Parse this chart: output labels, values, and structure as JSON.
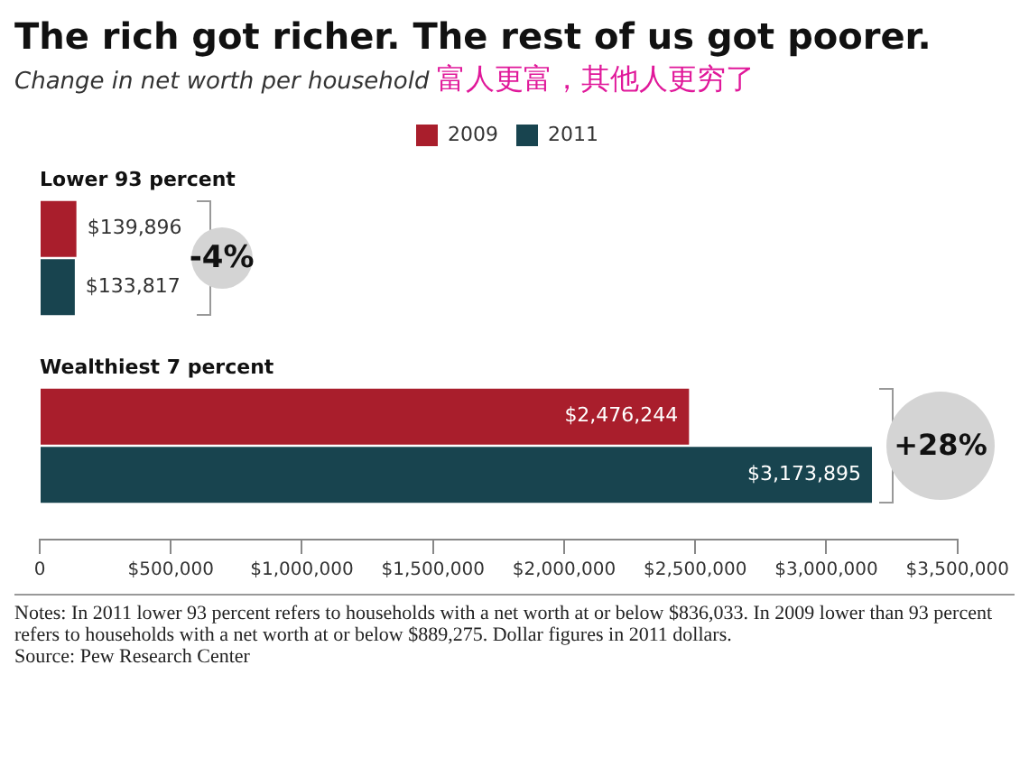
{
  "chart_data": {
    "type": "bar",
    "orientation": "horizontal",
    "title": "The rich got richer. The rest of us got poorer.",
    "subtitle": "Change in net worth per household",
    "categories": [
      "Lower 93 percent",
      "Wealthiest 7 percent"
    ],
    "series": [
      {
        "name": "2009",
        "color": "#a91e2c",
        "values": [
          139896,
          2476244
        ],
        "value_labels": [
          "$139,896",
          "$2,476,244"
        ]
      },
      {
        "name": "2011",
        "color": "#18444f",
        "values": [
          133817,
          3173895
        ],
        "value_labels": [
          "$133,817",
          "$3,173,895"
        ]
      }
    ],
    "xlim": [
      0,
      3500000
    ],
    "xticks": [
      0,
      {
        "value": 500000,
        "label": "$500,000"
      },
      {
        "value": 1000000,
        "label": "$1,000,000"
      },
      {
        "value": 1500000,
        "label": "$1,500,000"
      },
      {
        "value": 2000000,
        "label": "$2,000,000"
      },
      {
        "value": 2500000,
        "label": "$2,500,000"
      },
      {
        "value": 3000000,
        "label": "$3,000,000"
      },
      {
        "value": 3500000,
        "label": "$3,500,000"
      }
    ],
    "tick_labels": "x",
    "grid": false,
    "legend": "top",
    "annotations": [
      "富人更富，其他人更穷了",
      "-4%",
      "+28%",
      "Notes: In 2011 lower 93 percent refers to households with a net worth at or below $836,033. In 2009 lower than 93 percent refers to households with a net worth at or below $889,275. Dollar figures in 2011 dollars.",
      "Source: Pew Research Center"
    ]
  }
}
